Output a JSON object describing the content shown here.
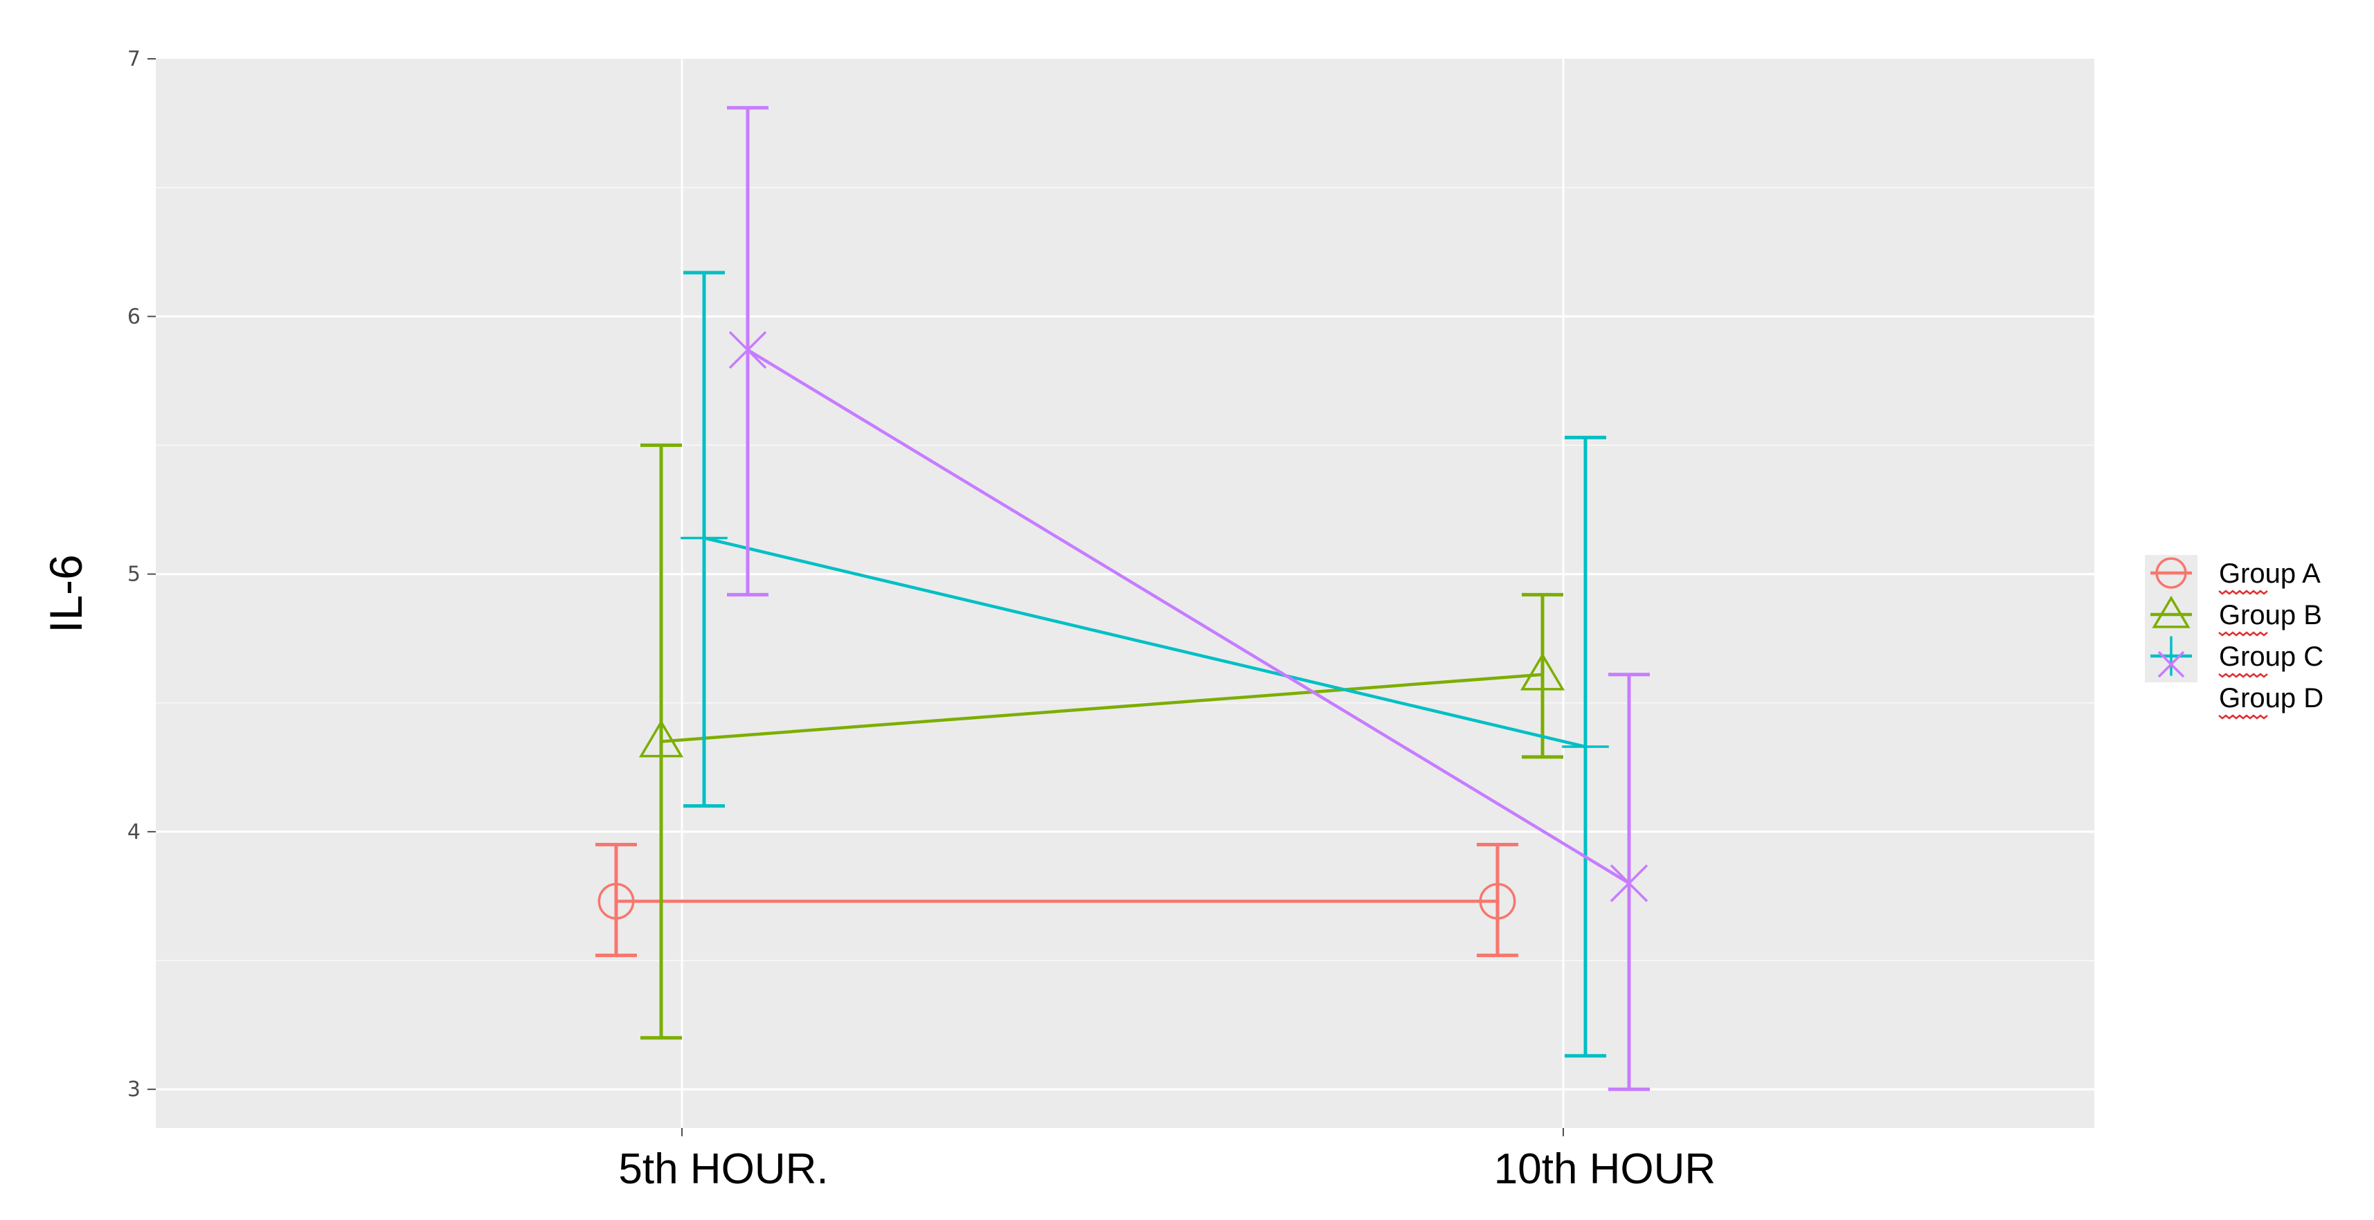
{
  "chart_data": {
    "type": "line",
    "title": "",
    "xlabel": "",
    "ylabel": "IL-6",
    "categories": [
      "5th HOUR.",
      "10th HOUR"
    ],
    "ylim": [
      2.85,
      7.0
    ],
    "yticks": [
      3,
      4,
      5,
      6,
      7
    ],
    "ytick_labels": [
      "3",
      "4",
      "5",
      "6",
      "7"
    ],
    "grid": true,
    "legend_position": "right",
    "series": [
      {
        "name": "Group A",
        "color": "#F8766D",
        "marker": "circle",
        "values": [
          3.73,
          3.73
        ],
        "error_low": [
          3.52,
          3.52
        ],
        "error_high": [
          3.95,
          3.95
        ]
      },
      {
        "name": "Group B",
        "color": "#7CAE00",
        "marker": "triangle",
        "values": [
          4.35,
          4.61
        ],
        "error_low": [
          3.2,
          4.29
        ],
        "error_high": [
          5.5,
          4.92
        ]
      },
      {
        "name": "Group C",
        "color": "#00BFC4",
        "marker": "plus",
        "values": [
          5.14,
          4.33
        ],
        "error_low": [
          4.1,
          3.13
        ],
        "error_high": [
          6.17,
          5.53
        ]
      },
      {
        "name": "Group D",
        "color": "#C77CFF",
        "marker": "cross",
        "values": [
          5.87,
          3.8
        ],
        "error_low": [
          4.92,
          3.0
        ],
        "error_high": [
          6.81,
          4.61
        ]
      }
    ],
    "background_color": "#EBEBEB",
    "grid_color": "#FFFFFF"
  }
}
